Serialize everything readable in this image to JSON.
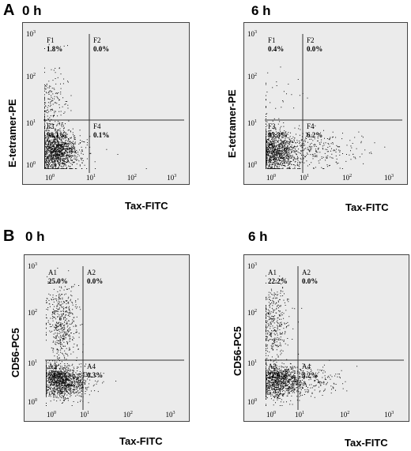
{
  "panelA": {
    "letter": "A",
    "ylabel": "E-tetramer-PE",
    "xlabel": "Tax-FITC",
    "plots": [
      {
        "time": "0 h",
        "quadrants": [
          {
            "id": "F1",
            "pct": "1.8%"
          },
          {
            "id": "F2",
            "pct": "0.0%"
          },
          {
            "id": "F3",
            "pct": "98.1%"
          },
          {
            "id": "F4",
            "pct": "0.1%"
          }
        ]
      },
      {
        "time": "6 h",
        "quadrants": [
          {
            "id": "F1",
            "pct": "0.4%"
          },
          {
            "id": "F2",
            "pct": "0.0%"
          },
          {
            "id": "F3",
            "pct": "93.3%"
          },
          {
            "id": "F4",
            "pct": "6.2%"
          }
        ]
      }
    ]
  },
  "panelB": {
    "letter": "B",
    "ylabel": "CD56-PC5",
    "xlabel": "Tax-FITC",
    "plots": [
      {
        "time": "0 h",
        "quadrants": [
          {
            "id": "A1",
            "pct": "25.0%"
          },
          {
            "id": "A2",
            "pct": "0.0%"
          },
          {
            "id": "A3",
            "pct": "74.6%"
          },
          {
            "id": "A4",
            "pct": "0.3%"
          }
        ]
      },
      {
        "time": "6 h",
        "quadrants": [
          {
            "id": "A1",
            "pct": "22.2%"
          },
          {
            "id": "A2",
            "pct": "0.0%"
          },
          {
            "id": "A3",
            "pct": "72.6%"
          },
          {
            "id": "A4",
            "pct": "5.2%"
          }
        ]
      }
    ]
  },
  "tick_labels": {
    "base": "10",
    "exponents": [
      "0",
      "1",
      "2",
      "3"
    ]
  }
}
